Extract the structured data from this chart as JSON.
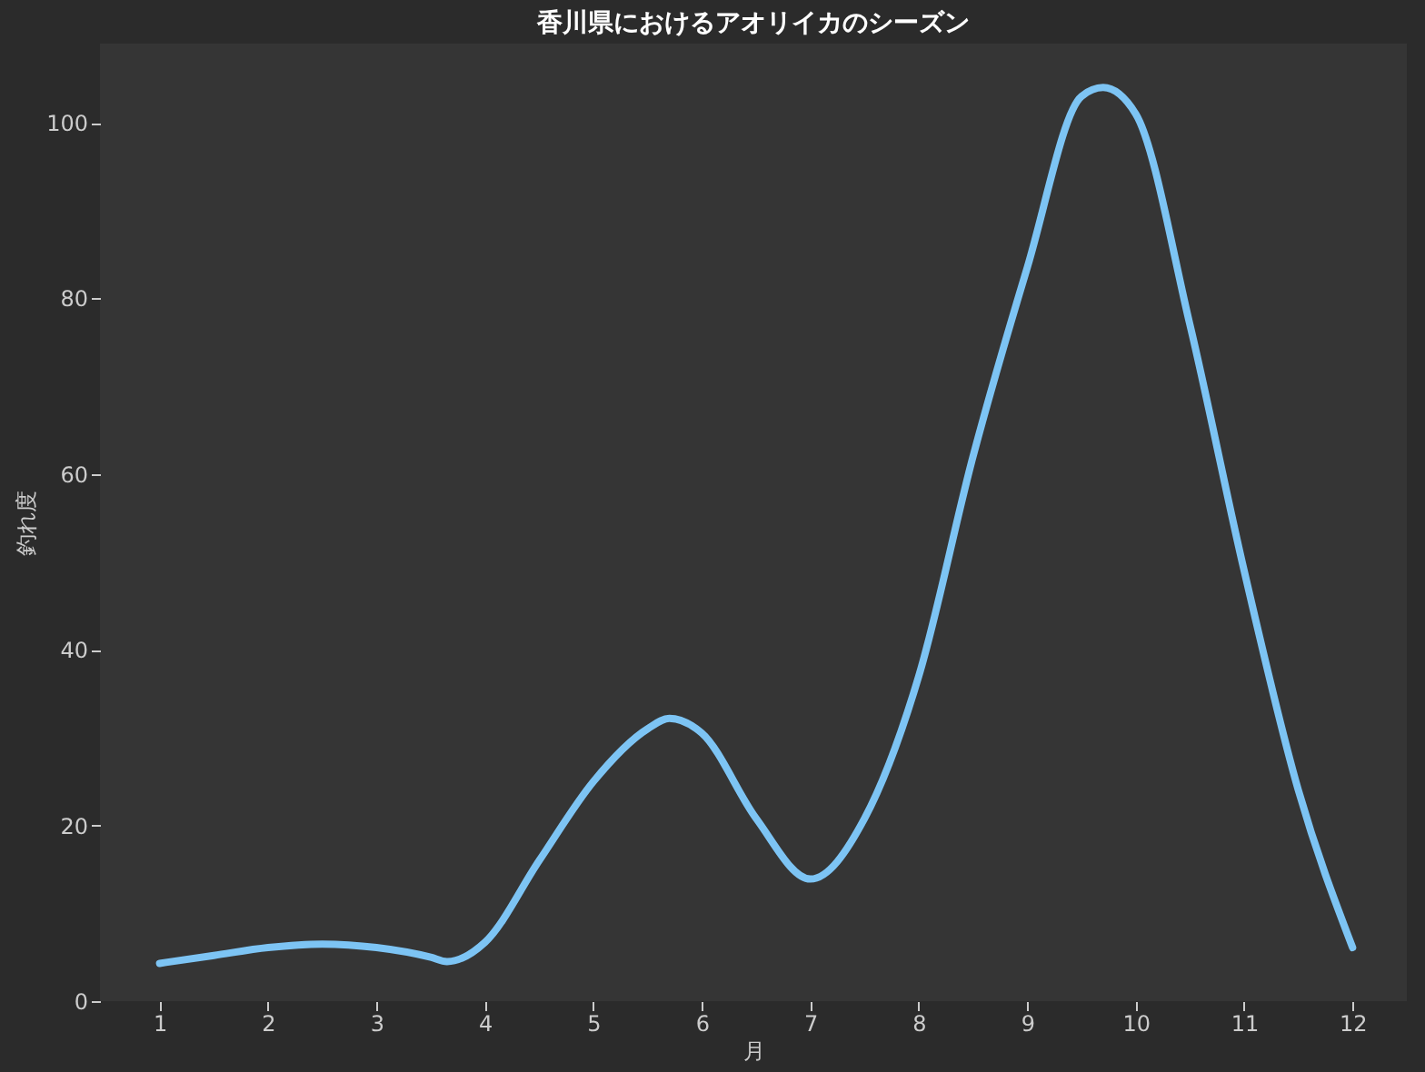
{
  "chart_data": {
    "type": "line",
    "title": "香川県におけるアオリイカのシーズン",
    "xlabel": "月",
    "ylabel": "釣れ度",
    "x": [
      1,
      1.5,
      2,
      2.5,
      3,
      3.5,
      3.65,
      4,
      4.5,
      5,
      5.5,
      5.7,
      6,
      6.5,
      7,
      7.5,
      8,
      8.5,
      9,
      9.5,
      9.7,
      10,
      10.5,
      11,
      11.5,
      12
    ],
    "series": [
      {
        "color": "#7dc4f4",
        "values": [
          4.3,
          5.2,
          6.1,
          6.5,
          6.1,
          5,
          4.5,
          6.7,
          16,
          25,
          31,
          32.2,
          30.5,
          20.8,
          13.9,
          20.8,
          37,
          62,
          83.5,
          103,
          104,
          101,
          77,
          49,
          24,
          6.1
        ]
      }
    ],
    "xlim": [
      0.45,
      12.5
    ],
    "xticks": [
      1,
      2,
      3,
      4,
      5,
      6,
      7,
      8,
      9,
      10,
      11,
      12
    ],
    "ylim": [
      0,
      109
    ],
    "yticks": [
      0,
      20,
      40,
      60,
      80,
      100
    ],
    "grid": false,
    "legend": false,
    "marker": "none",
    "line_style": "solid"
  }
}
